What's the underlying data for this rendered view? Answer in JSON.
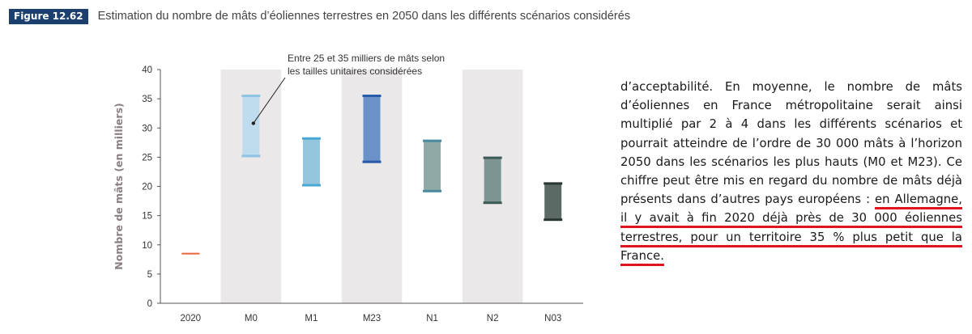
{
  "figure": {
    "badge": "Figure 12.62",
    "title": "Estimation du nombre de mâts d’éoliennes terrestres en 2050 dans les différents scénarios considérés"
  },
  "chart_data": {
    "type": "bar",
    "ylabel": "Nombre de mâts (en milliers)",
    "ylim": [
      0,
      40
    ],
    "yticks": [
      "0",
      "5",
      "10",
      "15",
      "20",
      "25",
      "30",
      "35",
      "40"
    ],
    "categories": [
      "2020",
      "M0",
      "M1",
      "M23",
      "N1",
      "N2",
      "N03"
    ],
    "ranges": [
      {
        "low": 8.5,
        "high": 8.5,
        "color": "#e8643c"
      },
      {
        "low": 25.2,
        "high": 35.5,
        "color": "#bfdcef"
      },
      {
        "low": 20.2,
        "high": 28.2,
        "color": "#94c6de"
      },
      {
        "low": 24.2,
        "high": 35.5,
        "color": "#6b91c9"
      },
      {
        "low": 19.2,
        "high": 27.8,
        "color": "#8fa9a6"
      },
      {
        "low": 17.2,
        "high": 24.9,
        "color": "#7d9591"
      },
      {
        "low": 14.3,
        "high": 20.5,
        "color": "#5b6a64"
      }
    ],
    "edge_colors": [
      "#e8643c",
      "#8fc3e3",
      "#4aa8d6",
      "#285aa8",
      "#4a8aa0",
      "#3d5a56",
      "#2a3632"
    ],
    "annotation": {
      "line1": "Entre 25 et 35 milliers de mâts selon",
      "line2": "les tailles unitaires considérées"
    },
    "grid": false,
    "legend": "none"
  },
  "text": {
    "part1": "d’acceptabilité. En moyenne, le nombre de mâts d’éoliennes en France métropolitaine serait ainsi multiplié par 2 à 4 dans les différents scénarios et pourrait atteindre de l’ordre de 30 000 mâts à l’horizon 2050 dans les scénarios les plus hauts (M0 et M23). Ce chiffre peut être mis en regard du nombre de mâts déjà présents dans d’autres pays européens : ",
    "underlined": "en Allemagne, il y avait à fin 2020 déjà près de 30 000 éoliennes terrestres, pour un territoire 35 % plus petit que la France.",
    "underline_color": "#e0141e"
  }
}
